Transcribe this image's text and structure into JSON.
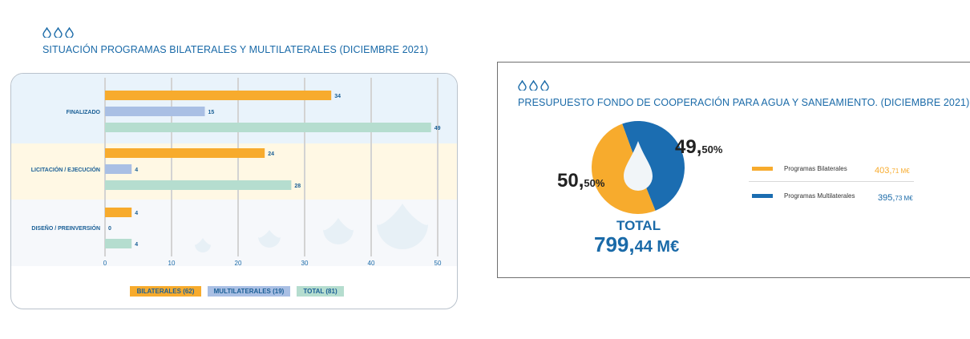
{
  "icon_names": [
    "water-drop-icon",
    "water-drop-icon",
    "water-drop-icon"
  ],
  "colors": {
    "bilaterales": "#f7ab2d",
    "multilaterales": "#a9bfe4",
    "total": "#b5ddcf",
    "label_blue": "#1a6aa8",
    "pie_multilaterales": "#1b6db1"
  },
  "left_chart": {
    "title": "SITUACIÓN PROGRAMAS BILATERALES Y MULTILATERALES (DICIEMBRE 2021)"
  },
  "right_chart": {
    "title": "PRESUPUESTO FONDO DE COOPERACIÓN PARA AGUA Y SANEAMIENTO. (DICIEMBRE 2021)",
    "total_label": "TOTAL",
    "total_value_big": "799,",
    "total_value_rest": "44 M€"
  },
  "chart_data": [
    {
      "type": "bar",
      "orientation": "horizontal",
      "title": "SITUACIÓN PROGRAMAS BILATERALES Y MULTILATERALES (DICIEMBRE 2021)",
      "categories": [
        "FINALIZADO",
        "LICITACIÓN / EJECUCIÓN",
        "DISEÑO / PREINVERSIÓN"
      ],
      "series": [
        {
          "name": "BILATERALES (62)",
          "values": [
            34,
            24,
            4
          ],
          "labels": [
            "34",
            "24",
            "4"
          ]
        },
        {
          "name": "MULTILATERALES (19)",
          "values": [
            15,
            4,
            0
          ],
          "labels": [
            "15",
            "4",
            "0"
          ]
        },
        {
          "name": "TOTAL (81)",
          "values": [
            49,
            28,
            4
          ],
          "labels": [
            "49",
            "28",
            "4"
          ]
        }
      ],
      "xlim": [
        0,
        50
      ],
      "xticks": [
        "0",
        "10",
        "20",
        "30",
        "40",
        "50"
      ],
      "grid": true,
      "legend_position": "bottom"
    },
    {
      "type": "pie",
      "title": "PRESUPUESTO FONDO DE COOPERACIÓN PARA AGUA Y SANEAMIENTO. (DICIEMBRE 2021)",
      "slices": [
        {
          "name": "Programas Bilaterales",
          "value": 50.5,
          "pct_big": "50,",
          "pct_small": "50%",
          "amount_big": "403,",
          "amount_small": "71 M€"
        },
        {
          "name": "Programas Multilaterales",
          "value": 49.5,
          "pct_big": "49,",
          "pct_small": "50%",
          "amount_big": "395,",
          "amount_small": "73 M€"
        }
      ],
      "legend_position": "right"
    }
  ]
}
